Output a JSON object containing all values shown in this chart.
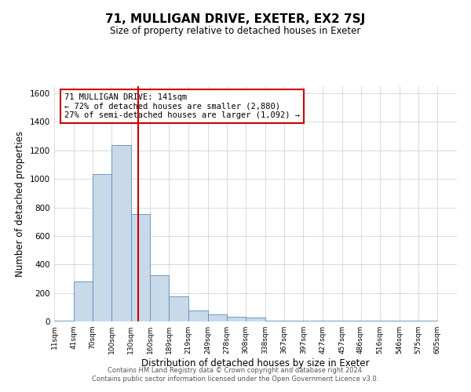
{
  "title": "71, MULLIGAN DRIVE, EXETER, EX2 7SJ",
  "subtitle": "Size of property relative to detached houses in Exeter",
  "xlabel": "Distribution of detached houses by size in Exeter",
  "ylabel": "Number of detached properties",
  "bar_left_edges": [
    11,
    41,
    70,
    100,
    130,
    160,
    189,
    219,
    249,
    278,
    308,
    338,
    367,
    397,
    427,
    457,
    486,
    516,
    546,
    575
  ],
  "bar_widths": [
    30,
    29,
    30,
    30,
    30,
    29,
    30,
    30,
    29,
    30,
    30,
    29,
    30,
    30,
    30,
    29,
    29,
    30,
    29,
    30
  ],
  "bar_heights": [
    5,
    280,
    1035,
    1240,
    755,
    325,
    175,
    75,
    50,
    35,
    25,
    5,
    5,
    5,
    5,
    5,
    5,
    5,
    5,
    5
  ],
  "tick_labels": [
    "11sqm",
    "41sqm",
    "70sqm",
    "100sqm",
    "130sqm",
    "160sqm",
    "189sqm",
    "219sqm",
    "249sqm",
    "278sqm",
    "308sqm",
    "338sqm",
    "367sqm",
    "397sqm",
    "427sqm",
    "457sqm",
    "486sqm",
    "516sqm",
    "546sqm",
    "575sqm",
    "605sqm"
  ],
  "tick_positions": [
    11,
    41,
    70,
    100,
    130,
    160,
    189,
    219,
    249,
    278,
    308,
    338,
    367,
    397,
    427,
    457,
    486,
    516,
    546,
    575,
    605
  ],
  "bar_color": "#c8d9ea",
  "bar_edge_color": "#5b8db8",
  "vline_x": 141,
  "vline_color": "#cc0000",
  "annotation_line1": "71 MULLIGAN DRIVE: 141sqm",
  "annotation_line2": "← 72% of detached houses are smaller (2,880)",
  "annotation_line3": "27% of semi-detached houses are larger (1,092) →",
  "annotation_box_color": "#ffffff",
  "annotation_box_edge_color": "#cc0000",
  "ylim": [
    0,
    1650
  ],
  "yticks": [
    0,
    200,
    400,
    600,
    800,
    1000,
    1200,
    1400,
    1600
  ],
  "grid_color": "#cccccc",
  "background_color": "#ffffff",
  "footer_line1": "Contains HM Land Registry data © Crown copyright and database right 2024.",
  "footer_line2": "Contains public sector information licensed under the Open Government Licence v3.0."
}
